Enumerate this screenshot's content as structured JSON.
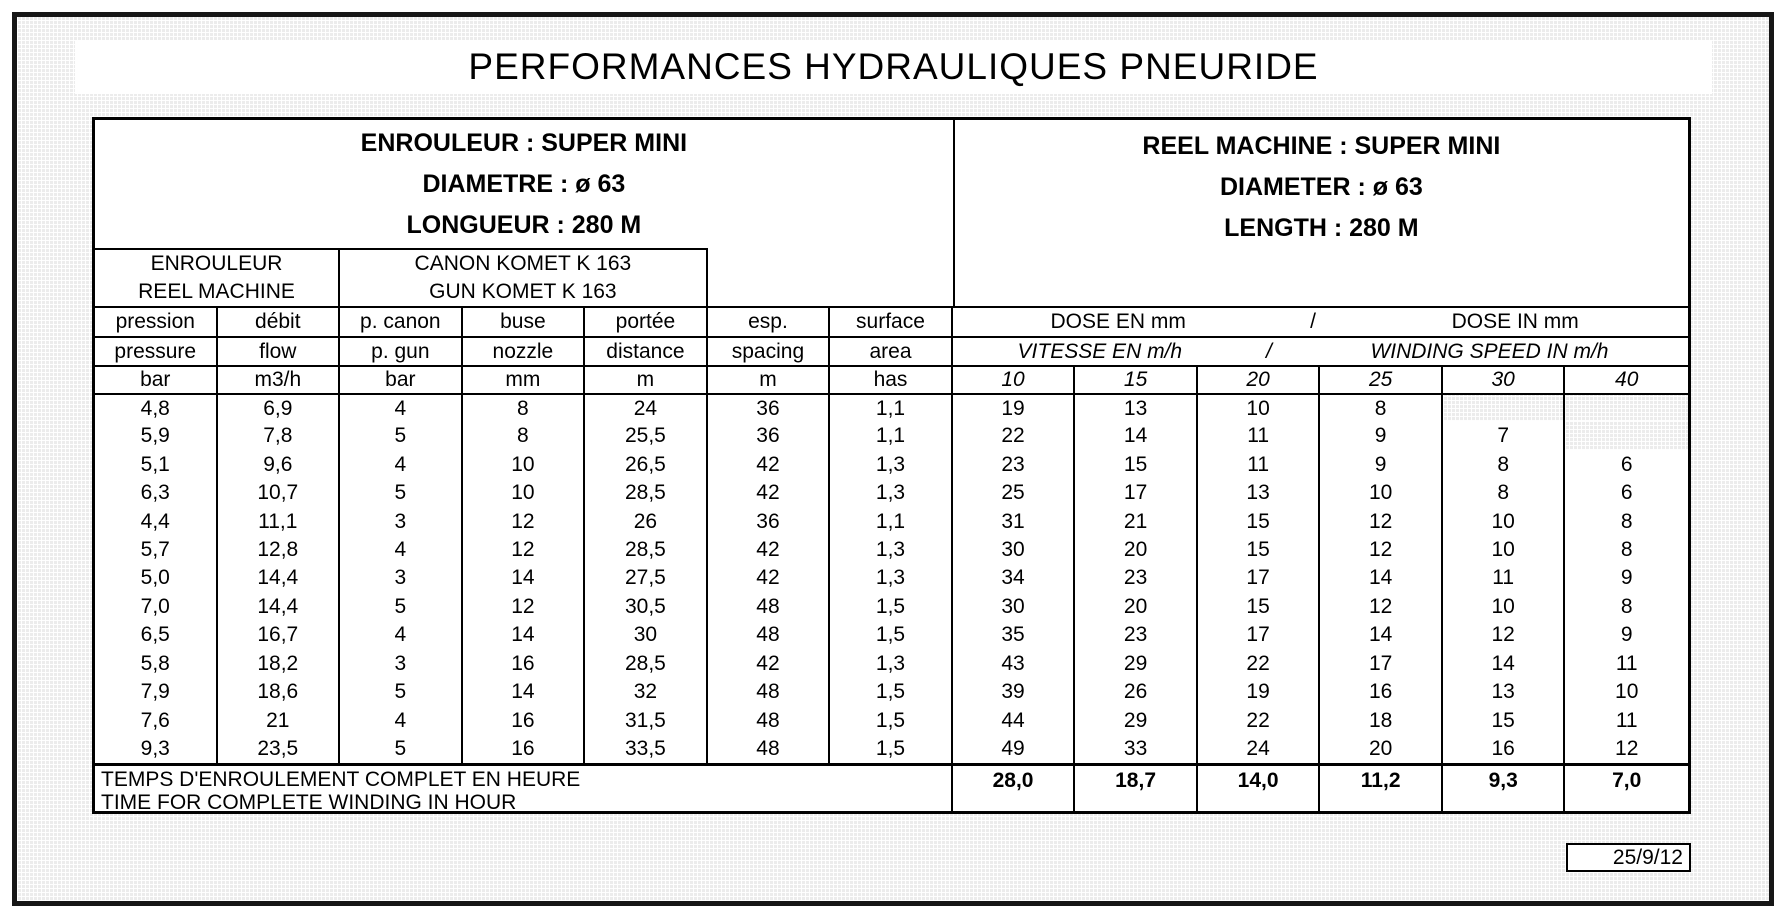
{
  "page": {
    "title": "PERFORMANCES HYDRAULIQUES PNEURIDE",
    "date": "25/9/12"
  },
  "left_header": {
    "lines": [
      "ENROULEUR : SUPER MINI",
      "DIAMETRE : ø 63",
      "LONGUEUR : 280 M"
    ]
  },
  "right_header": {
    "lines": [
      "REEL MACHINE : SUPER MINI",
      "DIAMETER : ø 63",
      "LENGTH : 280 M"
    ]
  },
  "sub_header": {
    "machine": {
      "fr": "ENROULEUR",
      "en": "REEL MACHINE"
    },
    "gun": {
      "fr": "CANON KOMET K 163",
      "en": "GUN KOMET K 163"
    }
  },
  "columns": {
    "fr": [
      "pression",
      "débit",
      "p. canon",
      "buse",
      "portée",
      "esp.",
      "surface"
    ],
    "en": [
      "pressure",
      "flow",
      "p. gun",
      "nozzle",
      "distance",
      "spacing",
      "area"
    ],
    "units": [
      "bar",
      "m3/h",
      "bar",
      "mm",
      "m",
      "m",
      "has"
    ]
  },
  "dose_header": {
    "fr": "DOSE EN mm",
    "separator": "/",
    "en": "DOSE IN mm"
  },
  "speed_header": {
    "fr": "VITESSE EN m/h",
    "separator": "/",
    "en": "WINDING SPEED IN m/h",
    "values": [
      "10",
      "15",
      "20",
      "25",
      "30",
      "40"
    ]
  },
  "rows": [
    {
      "left": [
        "4,8",
        "6,9",
        "4",
        "8",
        "24",
        "36",
        "1,1"
      ],
      "right": [
        "19",
        "13",
        "10",
        "8",
        "",
        ""
      ]
    },
    {
      "left": [
        "5,9",
        "7,8",
        "5",
        "8",
        "25,5",
        "36",
        "1,1"
      ],
      "right": [
        "22",
        "14",
        "11",
        "9",
        "7",
        ""
      ]
    },
    {
      "left": [
        "5,1",
        "9,6",
        "4",
        "10",
        "26,5",
        "42",
        "1,3"
      ],
      "right": [
        "23",
        "15",
        "11",
        "9",
        "8",
        "6"
      ]
    },
    {
      "left": [
        "6,3",
        "10,7",
        "5",
        "10",
        "28,5",
        "42",
        "1,3"
      ],
      "right": [
        "25",
        "17",
        "13",
        "10",
        "8",
        "6"
      ]
    },
    {
      "left": [
        "4,4",
        "11,1",
        "3",
        "12",
        "26",
        "36",
        "1,1"
      ],
      "right": [
        "31",
        "21",
        "15",
        "12",
        "10",
        "8"
      ]
    },
    {
      "left": [
        "5,7",
        "12,8",
        "4",
        "12",
        "28,5",
        "42",
        "1,3"
      ],
      "right": [
        "30",
        "20",
        "15",
        "12",
        "10",
        "8"
      ]
    },
    {
      "left": [
        "5,0",
        "14,4",
        "3",
        "14",
        "27,5",
        "42",
        "1,3"
      ],
      "right": [
        "34",
        "23",
        "17",
        "14",
        "11",
        "9"
      ]
    },
    {
      "left": [
        "7,0",
        "14,4",
        "5",
        "12",
        "30,5",
        "48",
        "1,5"
      ],
      "right": [
        "30",
        "20",
        "15",
        "12",
        "10",
        "8"
      ]
    },
    {
      "left": [
        "6,5",
        "16,7",
        "4",
        "14",
        "30",
        "48",
        "1,5"
      ],
      "right": [
        "35",
        "23",
        "17",
        "14",
        "12",
        "9"
      ]
    },
    {
      "left": [
        "5,8",
        "18,2",
        "3",
        "16",
        "28,5",
        "42",
        "1,3"
      ],
      "right": [
        "43",
        "29",
        "22",
        "17",
        "14",
        "11"
      ]
    },
    {
      "left": [
        "7,9",
        "18,6",
        "5",
        "14",
        "32",
        "48",
        "1,5"
      ],
      "right": [
        "39",
        "26",
        "19",
        "16",
        "13",
        "10"
      ]
    },
    {
      "left": [
        "7,6",
        "21",
        "4",
        "16",
        "31,5",
        "48",
        "1,5"
      ],
      "right": [
        "44",
        "29",
        "22",
        "18",
        "15",
        "11"
      ]
    },
    {
      "left": [
        "9,3",
        "23,5",
        "5",
        "16",
        "33,5",
        "48",
        "1,5"
      ],
      "right": [
        "49",
        "33",
        "24",
        "20",
        "16",
        "12"
      ]
    }
  ],
  "shaded_cells": [
    [
      0,
      4
    ],
    [
      0,
      5
    ],
    [
      1,
      5
    ]
  ],
  "footer": {
    "label_fr": "TEMPS D'ENROULEMENT COMPLET EN HEURE",
    "label_en": "TIME FOR COMPLETE WINDING IN HOUR",
    "values": [
      "28,0",
      "18,7",
      "14,0",
      "11,2",
      "9,3",
      "7,0"
    ]
  }
}
